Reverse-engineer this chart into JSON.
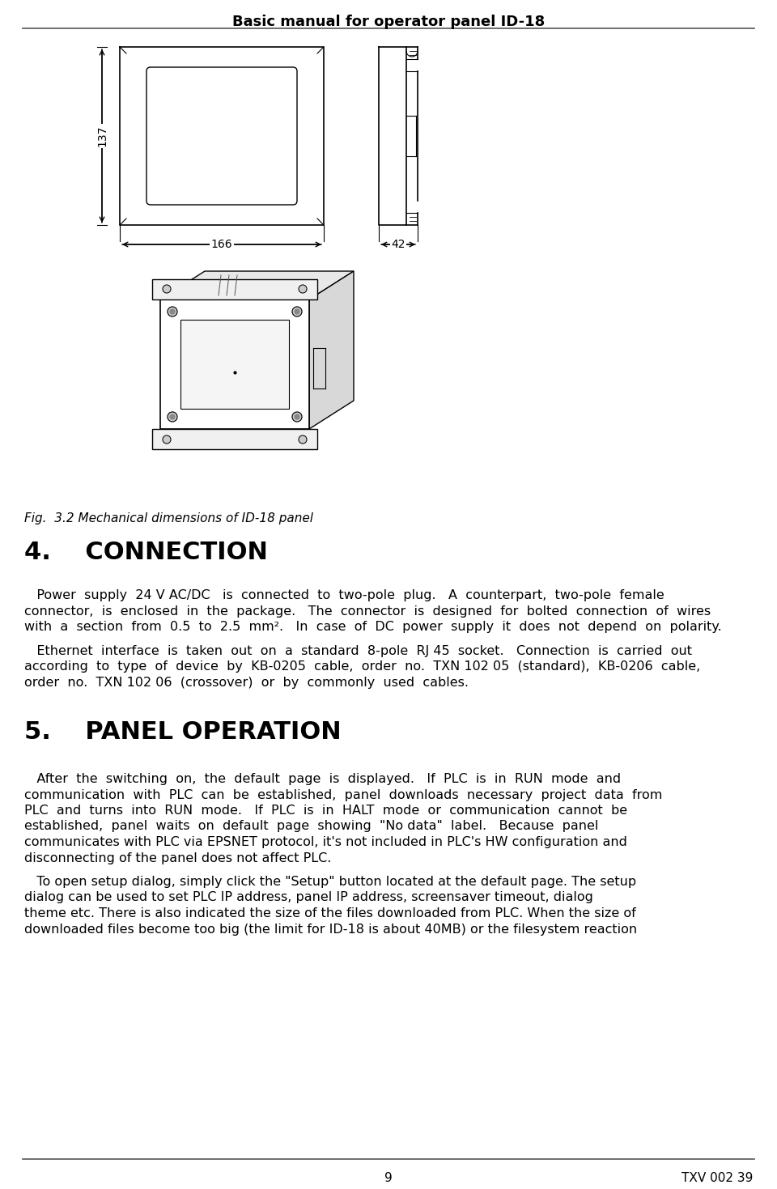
{
  "title": "Basic manual for operator panel ID-18",
  "bg_color": "#ffffff",
  "text_color": "#000000",
  "line_color": "#999999",
  "fig_caption": "Fig.  3.2 Mechanical dimensions of ID-18 panel",
  "section4_title": "4.    CONNECTION",
  "section5_title": "5.    PANEL OPERATION",
  "footer_page": "9",
  "footer_right": "TXV 002 39",
  "para1_lines": [
    "   Power  supply  24 V AC/DC   is  connected  to  two-pole  plug.   A  counterpart,  two-pole  female",
    "connector,  is  enclosed  in  the  package.   The  connector  is  designed  for  bolted  connection  of  wires",
    "with  a  section  from  0.5  to  2.5  mm².   In  case  of  DC  power  supply  it  does  not  depend  on  polarity."
  ],
  "para2_lines": [
    "   Ethernet  interface  is  taken  out  on  a  standard  8-pole  RJ 45  socket.   Connection  is  carried  out",
    "according  to  type  of  device  by  KB-0205  cable,  order  no.  TXN 102 05  (standard),  KB-0206  cable,",
    "order  no.  TXN 102 06  (crossover)  or  by  commonly  used  cables."
  ],
  "para3_lines": [
    "   After  the  switching  on,  the  default  page  is  displayed.   If  PLC  is  in  RUN  mode  and",
    "communication  with  PLC  can  be  established,  panel  downloads  necessary  project  data  from",
    "PLC  and  turns  into  RUN  mode.   If  PLC  is  in  HALT  mode  or  communication  cannot  be",
    "established,  panel  waits  on  default  page  showing  \"No data\"  label.   Because  panel",
    "communicates with PLC via EPSNET protocol, it's not included in PLC's HW configuration and",
    "disconnecting of the panel does not affect PLC."
  ],
  "para4_lines": [
    "   To open setup dialog, simply click the \"Setup\" button located at the default page. The setup",
    "dialog can be used to set PLC IP address, panel IP address, screensaver timeout, dialog",
    "theme etc. There is also indicated the size of the files downloaded from PLC. When the size of",
    "downloaded files become too big (the limit for ID-18 is about 40MB) or the filesystem reaction"
  ]
}
